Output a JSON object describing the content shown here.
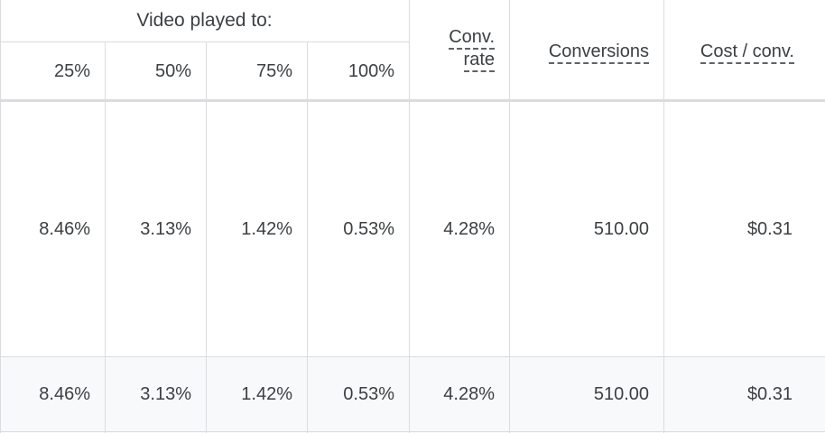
{
  "table": {
    "group_header": "Video played to:",
    "columns": {
      "p25": "25%",
      "p50": "50%",
      "p75": "75%",
      "p100": "100%",
      "conv_rate_line1": "Conv.",
      "conv_rate_line2": "rate",
      "conversions": "Conversions",
      "cost_per_conv": "Cost / conv."
    },
    "rows": [
      {
        "p25": "8.46%",
        "p50": "3.13%",
        "p75": "1.42%",
        "p100": "0.53%",
        "conv_rate": "4.28%",
        "conversions": "510.00",
        "cost_per_conv": "$0.31"
      },
      {
        "p25": "8.46%",
        "p50": "3.13%",
        "p75": "1.42%",
        "p100": "0.53%",
        "conv_rate": "4.28%",
        "conversions": "510.00",
        "cost_per_conv": "$0.31"
      }
    ]
  }
}
